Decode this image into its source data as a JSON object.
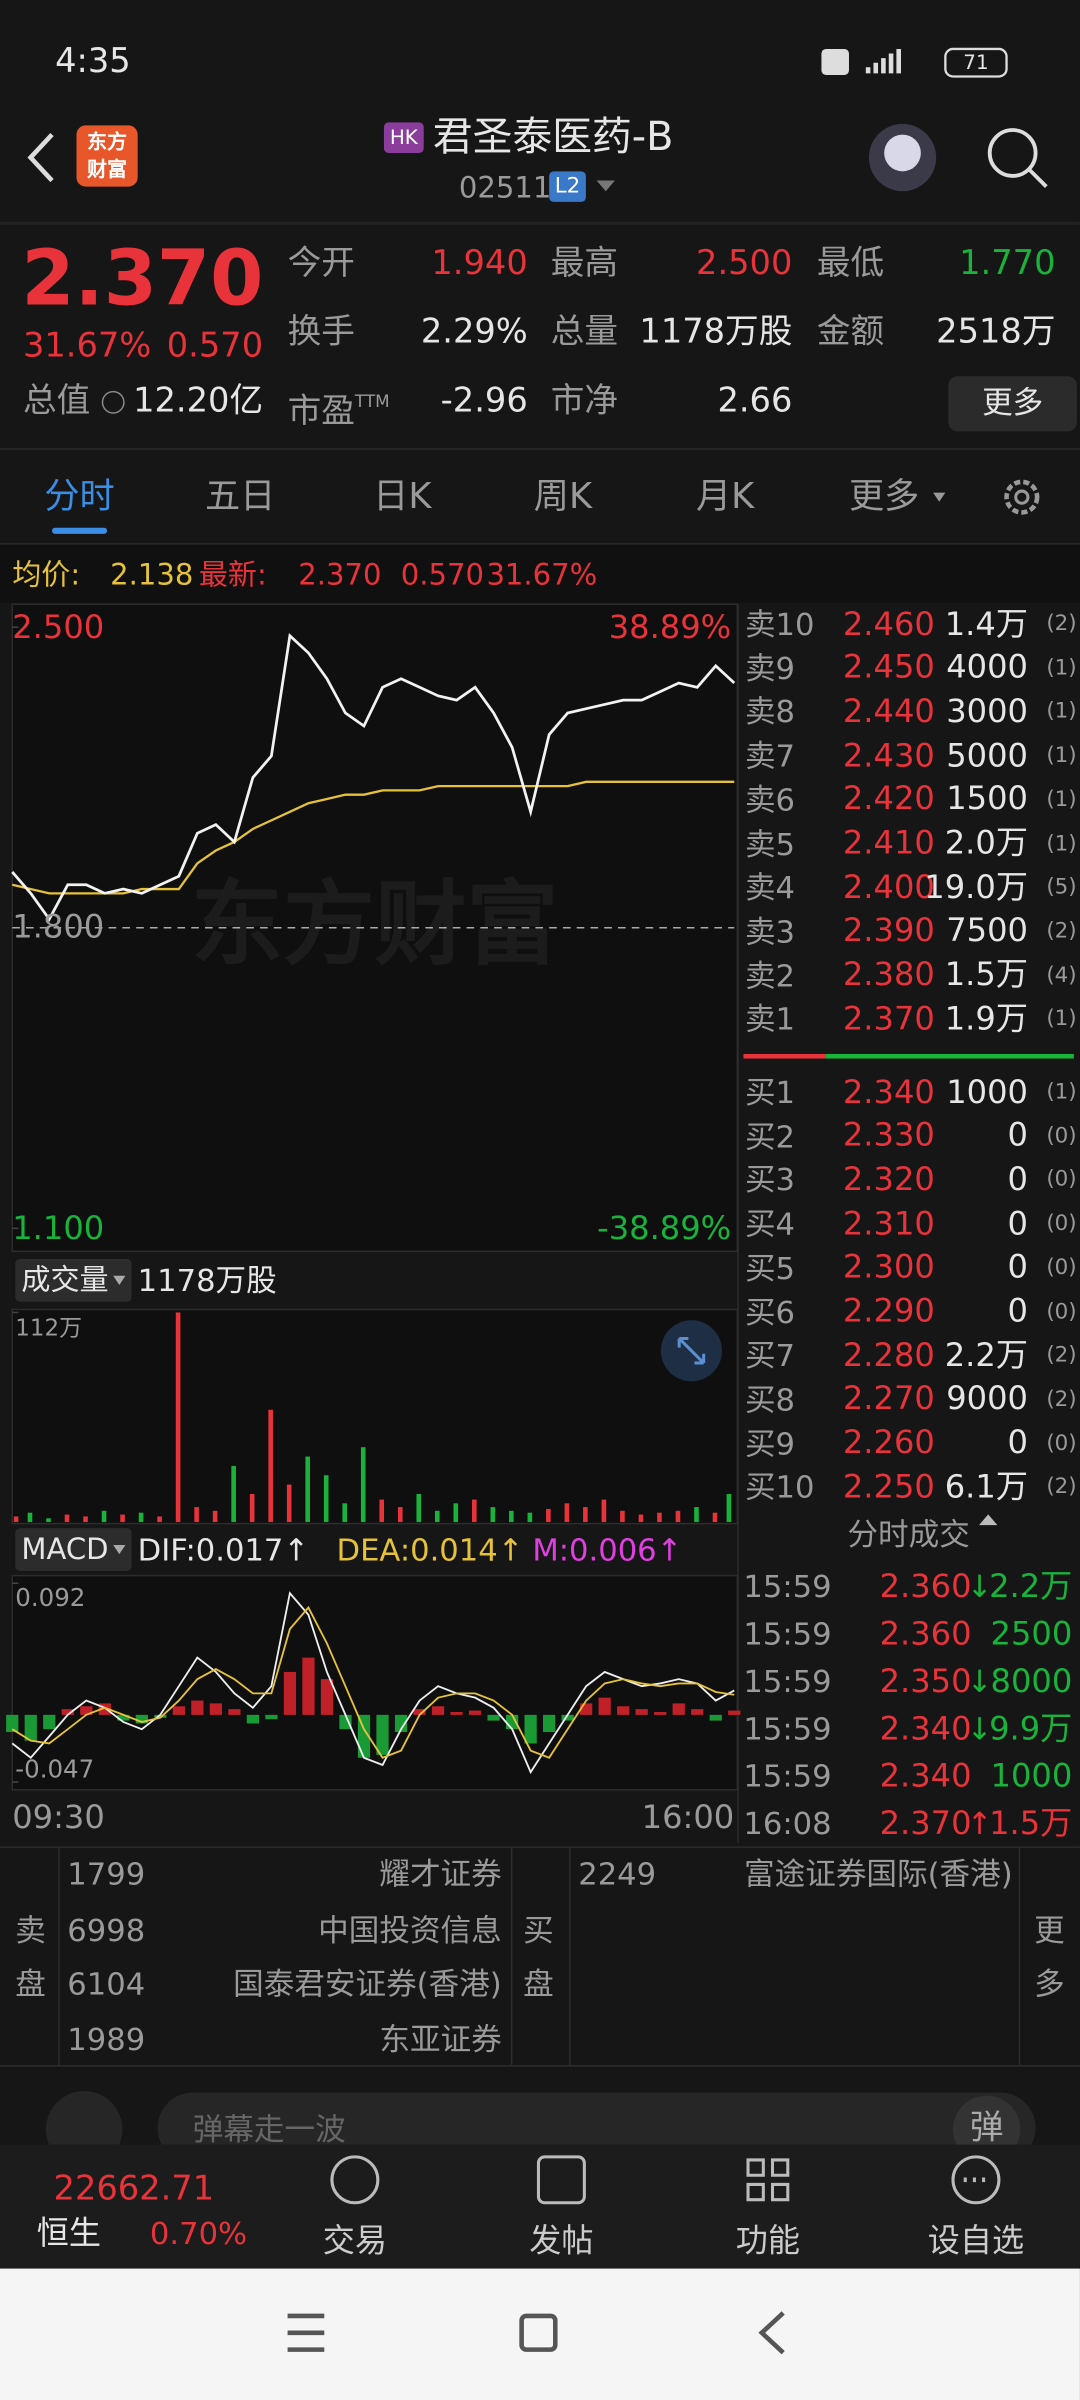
{
  "status_bar": {
    "time": "4:35",
    "battery": "71"
  },
  "header": {
    "logo": [
      "东方",
      "财富"
    ],
    "market_tag": "HK",
    "name": "君圣泰医药-B",
    "code": "02511",
    "level": "L2"
  },
  "quote": {
    "price": "2.370",
    "change_pct": "31.67%",
    "change": "0.570",
    "market_cap": {
      "label": "总值",
      "value": "12.20亿"
    },
    "fields": [
      {
        "label": "今开",
        "value": "1.940",
        "color": "#e8333a"
      },
      {
        "label": "最高",
        "value": "2.500",
        "color": "#e8333a"
      },
      {
        "label": "最低",
        "value": "1.770",
        "color": "#19b33c"
      },
      {
        "label": "换手",
        "value": "2.29%",
        "color": "#e6e6e6"
      },
      {
        "label": "总量",
        "value": "1178万股",
        "color": "#e6e6e6"
      },
      {
        "label": "金额",
        "value": "2518万",
        "color": "#e6e6e6"
      },
      {
        "label": "市盈",
        "label_sup": "TTM",
        "value": "-2.96",
        "color": "#e6e6e6"
      },
      {
        "label": "市净",
        "value": "2.66",
        "color": "#e6e6e6"
      }
    ],
    "more": "更多"
  },
  "tabs": [
    "分时",
    "五日",
    "日K",
    "周K",
    "月K",
    "更多"
  ],
  "info_line": {
    "avg_label": "均价:",
    "avg": "2.138",
    "latest_label": "最新:",
    "latest": "2.370",
    "change": "0.570",
    "change_pct": "31.67%"
  },
  "intraday": {
    "ylim": [
      1.1,
      2.5
    ],
    "yticks": [
      {
        "value": 2.5,
        "label": "2.500"
      },
      {
        "value": 1.8,
        "label": "1.800"
      },
      {
        "value": 1.1,
        "label": "1.100"
      }
    ],
    "pct_top": "38.89%",
    "pct_bottom": "-38.89%",
    "watermark": "东方财富",
    "price": [
      1.93,
      1.88,
      1.82,
      1.9,
      1.9,
      1.88,
      1.89,
      1.88,
      1.9,
      1.92,
      2.02,
      2.04,
      2.0,
      2.15,
      2.2,
      2.48,
      2.44,
      2.38,
      2.3,
      2.27,
      2.36,
      2.38,
      2.36,
      2.34,
      2.33,
      2.36,
      2.3,
      2.22,
      2.07,
      2.25,
      2.3,
      2.31,
      2.32,
      2.33,
      2.33,
      2.35,
      2.37,
      2.36,
      2.41,
      2.37
    ],
    "avg": [
      1.9,
      1.89,
      1.88,
      1.88,
      1.88,
      1.88,
      1.88,
      1.89,
      1.89,
      1.89,
      1.95,
      1.98,
      2.0,
      2.03,
      2.05,
      2.07,
      2.09,
      2.1,
      2.11,
      2.11,
      2.12,
      2.12,
      2.12,
      2.13,
      2.13,
      2.13,
      2.13,
      2.13,
      2.13,
      2.13,
      2.13,
      2.14,
      2.14,
      2.14,
      2.14,
      2.14,
      2.14,
      2.14,
      2.14,
      2.14
    ],
    "x_start": "09:30",
    "x_end": "16:00"
  },
  "volume": {
    "label": "成交量",
    "total": "1178万股",
    "ylim": [
      0,
      112
    ],
    "yticks": [
      {
        "value": 112,
        "label": "112万"
      }
    ],
    "values": [
      3,
      5,
      2,
      4,
      3,
      6,
      4,
      5,
      3,
      112,
      8,
      6,
      30,
      15,
      60,
      20,
      35,
      25,
      10,
      40,
      12,
      8,
      15,
      6,
      10,
      12,
      8,
      6,
      5,
      7,
      10,
      8,
      12,
      6,
      4,
      5,
      6,
      8,
      5,
      15
    ]
  },
  "macd": {
    "label": "MACD",
    "dif": "DIF:0.017↑",
    "dea": "DEA:0.014↑",
    "m": "M:0.006↑",
    "ylim": [
      -0.047,
      0.092
    ],
    "yticks": [
      0.092,
      -0.047
    ],
    "hist": [
      -0.012,
      -0.018,
      -0.01,
      0.004,
      0.006,
      0.008,
      -0.004,
      -0.006,
      -0.002,
      0.006,
      0.01,
      0.008,
      0.004,
      -0.006,
      -0.003,
      0.03,
      0.04,
      0.025,
      -0.01,
      -0.03,
      -0.028,
      -0.012,
      0.004,
      0.006,
      0.002,
      0.003,
      -0.004,
      -0.01,
      -0.02,
      -0.012,
      -0.004,
      0.008,
      0.012,
      0.006,
      0.004,
      0.002,
      0.008,
      0.004,
      -0.004,
      0.003
    ],
    "dif_line": [
      -0.02,
      -0.03,
      -0.015,
      0,
      0.01,
      0.005,
      -0.005,
      -0.01,
      0,
      0.02,
      0.04,
      0.03,
      0.015,
      0.005,
      0.02,
      0.085,
      0.07,
      0.03,
      0,
      -0.03,
      -0.035,
      -0.01,
      0.01,
      0.02,
      0.015,
      0.012,
      0.005,
      -0.01,
      -0.04,
      -0.02,
      0,
      0.02,
      0.03,
      0.025,
      0.02,
      0.022,
      0.025,
      0.022,
      0.01,
      0.017
    ],
    "dea_line": [
      -0.01,
      -0.018,
      -0.02,
      -0.01,
      0,
      0.005,
      0,
      -0.005,
      -0.002,
      0.01,
      0.025,
      0.032,
      0.025,
      0.015,
      0.015,
      0.06,
      0.075,
      0.05,
      0.02,
      -0.01,
      -0.03,
      -0.025,
      0,
      0.012,
      0.015,
      0.015,
      0.01,
      0,
      -0.025,
      -0.03,
      -0.01,
      0.01,
      0.022,
      0.025,
      0.022,
      0.02,
      0.022,
      0.022,
      0.016,
      0.014
    ]
  },
  "order_book": {
    "asks": [
      {
        "label": "卖10",
        "price": "2.460",
        "volume": "1.4万",
        "count": "(2)"
      },
      {
        "label": "卖9",
        "price": "2.450",
        "volume": "4000",
        "count": "(1)"
      },
      {
        "label": "卖8",
        "price": "2.440",
        "volume": "3000",
        "count": "(1)"
      },
      {
        "label": "卖7",
        "price": "2.430",
        "volume": "5000",
        "count": "(1)"
      },
      {
        "label": "卖6",
        "price": "2.420",
        "volume": "1500",
        "count": "(1)"
      },
      {
        "label": "卖5",
        "price": "2.410",
        "volume": "2.0万",
        "count": "(1)"
      },
      {
        "label": "卖4",
        "price": "2.400",
        "volume": "19.0万",
        "count": "(5)"
      },
      {
        "label": "卖3",
        "price": "2.390",
        "volume": "7500",
        "count": "(2)"
      },
      {
        "label": "卖2",
        "price": "2.380",
        "volume": "1.5万",
        "count": "(4)"
      },
      {
        "label": "卖1",
        "price": "2.370",
        "volume": "1.9万",
        "count": "(1)"
      }
    ],
    "bids": [
      {
        "label": "买1",
        "price": "2.340",
        "volume": "1000",
        "count": "(1)"
      },
      {
        "label": "买2",
        "price": "2.330",
        "volume": "0",
        "count": "(0)"
      },
      {
        "label": "买3",
        "price": "2.320",
        "volume": "0",
        "count": "(0)"
      },
      {
        "label": "买4",
        "price": "2.310",
        "volume": "0",
        "count": "(0)"
      },
      {
        "label": "买5",
        "price": "2.300",
        "volume": "0",
        "count": "(0)"
      },
      {
        "label": "买6",
        "price": "2.290",
        "volume": "0",
        "count": "(0)"
      },
      {
        "label": "买7",
        "price": "2.280",
        "volume": "2.2万",
        "count": "(2)"
      },
      {
        "label": "买8",
        "price": "2.270",
        "volume": "9000",
        "count": "(2)"
      },
      {
        "label": "买9",
        "price": "2.260",
        "volume": "0",
        "count": "(0)"
      },
      {
        "label": "买10",
        "price": "2.250",
        "volume": "6.1万",
        "count": "(2)"
      }
    ]
  },
  "trades": {
    "title": "分时成交",
    "rows": [
      {
        "time": "15:59",
        "price": "2.360",
        "arrow": "↓",
        "volume": "2.2万",
        "color": "#19b33c"
      },
      {
        "time": "15:59",
        "price": "2.360",
        "arrow": "",
        "volume": "2500",
        "color": "#19b33c"
      },
      {
        "time": "15:59",
        "price": "2.350",
        "arrow": "↓",
        "volume": "8000",
        "color": "#19b33c"
      },
      {
        "time": "15:59",
        "price": "2.340",
        "arrow": "↓",
        "volume": "9.9万",
        "color": "#19b33c"
      },
      {
        "time": "15:59",
        "price": "2.340",
        "arrow": "",
        "volume": "1000",
        "color": "#19b33c"
      },
      {
        "time": "16:08",
        "price": "2.370",
        "arrow": "↑",
        "volume": "1.5万",
        "color": "#e8333a"
      }
    ]
  },
  "brokers": {
    "sell_label": [
      "卖",
      "盘"
    ],
    "buy_label": [
      "买",
      "盘"
    ],
    "more": [
      "更",
      "多"
    ],
    "sell": [
      {
        "id": "1799",
        "name": "耀才证券"
      },
      {
        "id": "6998",
        "name": "中国投资信息"
      },
      {
        "id": "6104",
        "name": "国泰君安证券(香港)"
      },
      {
        "id": "1989",
        "name": "东亚证券"
      }
    ],
    "buy": [
      {
        "id": "2249",
        "name": "富途证券国际(香港)"
      }
    ]
  },
  "comment": {
    "placeholder": "弹幕走一波",
    "button": "弹"
  },
  "bottom_nav": {
    "index_value": "22662.71",
    "index_name": "恒生",
    "index_change": "0.70%",
    "items": [
      "交易",
      "发帖",
      "功能",
      "设自选"
    ]
  }
}
